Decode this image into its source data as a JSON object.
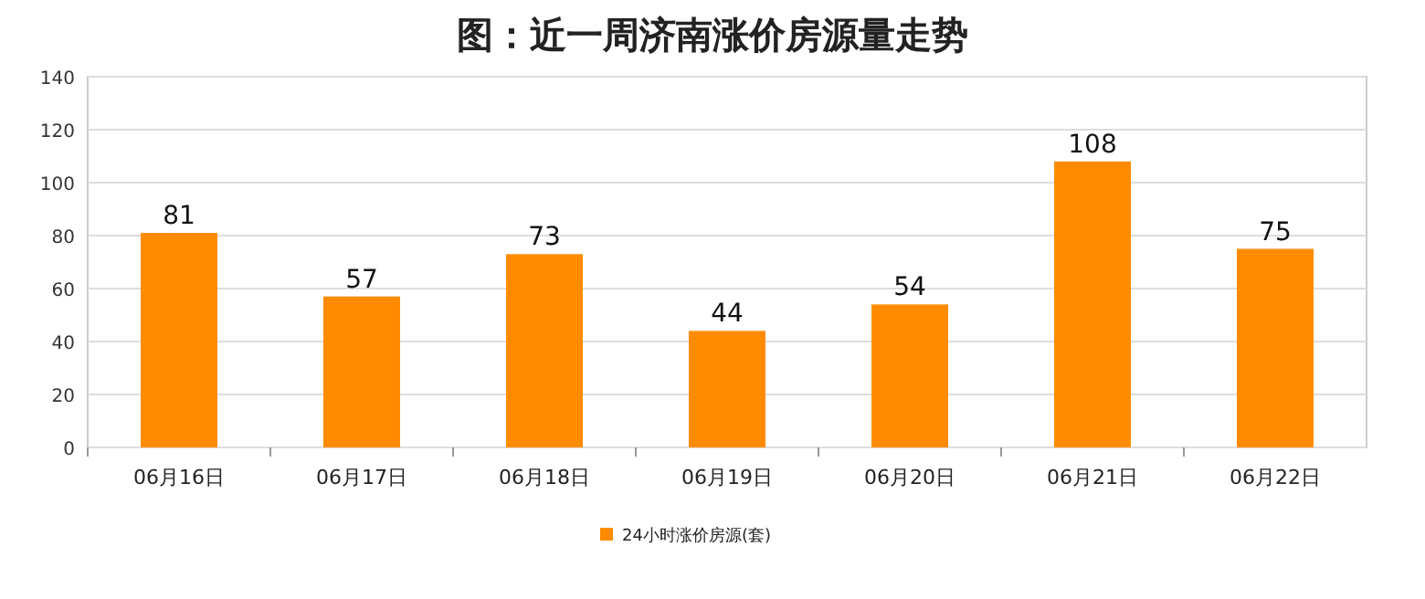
{
  "chart_data": {
    "type": "bar",
    "title": "图：近一周济南涨价房源量走势",
    "categories": [
      "06月16日",
      "06月17日",
      "06月18日",
      "06月19日",
      "06月20日",
      "06月21日",
      "06月22日"
    ],
    "series": [
      {
        "name": "24小时涨价房源(套)",
        "color": "#ff8c00",
        "values": [
          81,
          57,
          73,
          44,
          54,
          108,
          75
        ]
      }
    ],
    "ylim": [
      0,
      140
    ],
    "yticks": [
      0,
      20,
      40,
      60,
      80,
      100,
      120,
      140
    ],
    "grid": "y",
    "legend": "bottom",
    "data_labels": true
  }
}
